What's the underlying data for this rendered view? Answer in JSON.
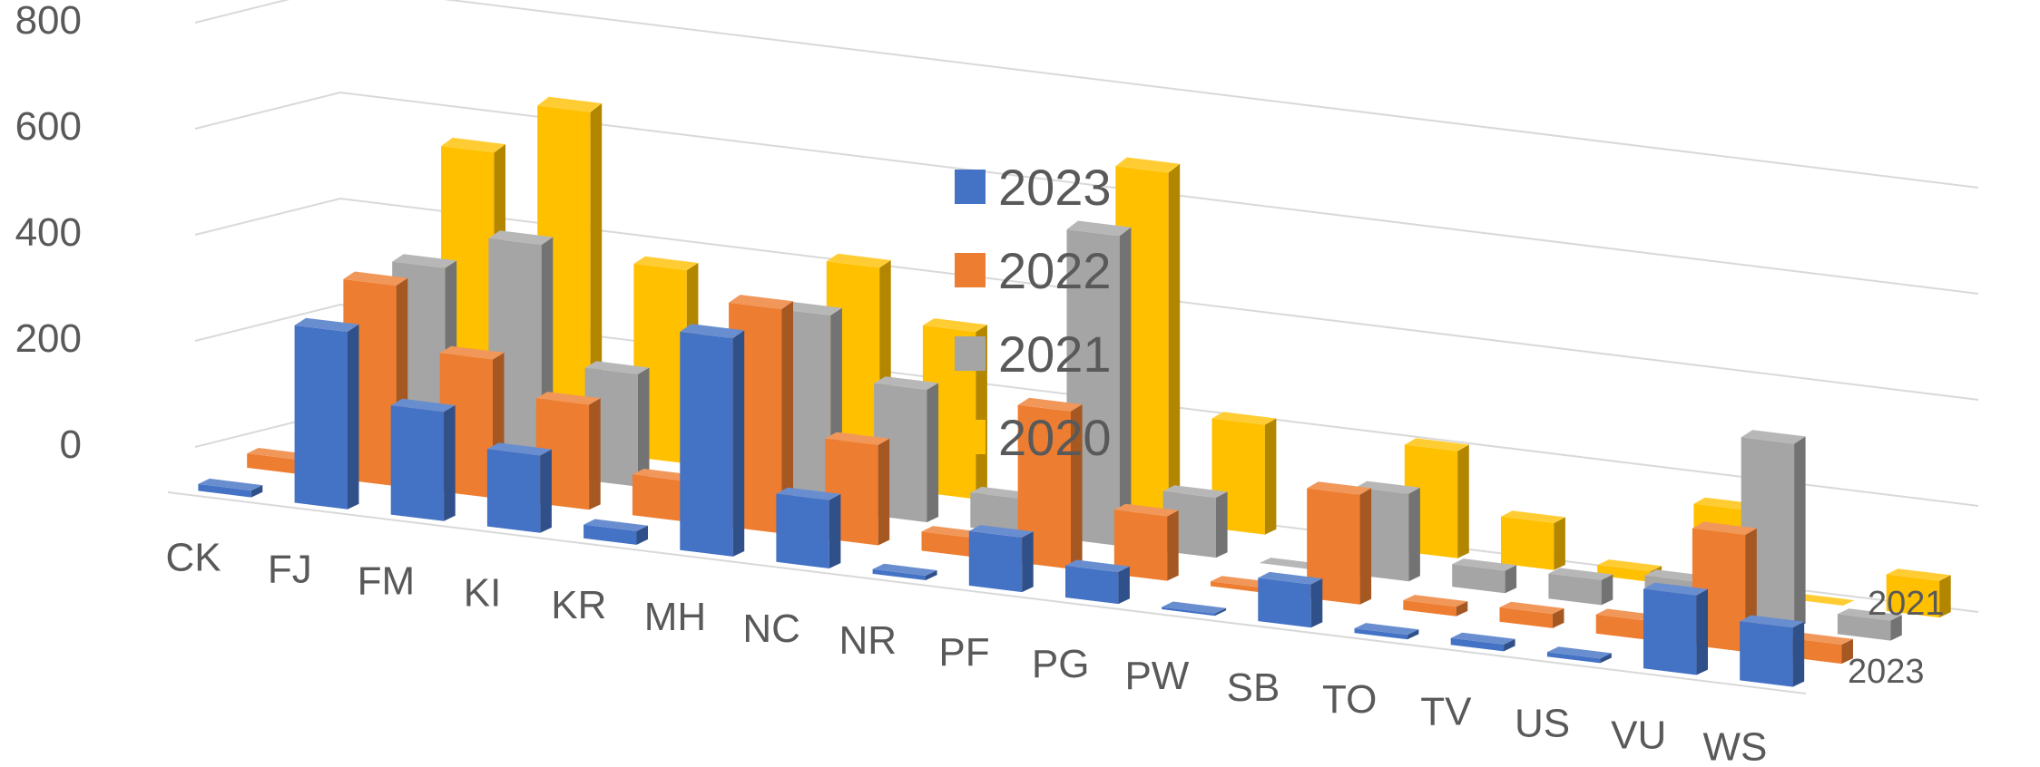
{
  "chart_data": {
    "type": "bar",
    "subtype": "3d-clustered-depth",
    "title": "",
    "xlabel": "",
    "ylabel": "",
    "ylim": [
      0,
      800
    ],
    "yticks": [
      "0",
      "200",
      "400",
      "600",
      "800"
    ],
    "grid": true,
    "legend_position": "right",
    "categories": [
      "CK",
      "FJ",
      "FM",
      "KI",
      "KR",
      "MH",
      "NC",
      "NR",
      "PF",
      "PG",
      "PW",
      "SB",
      "TO",
      "TV",
      "US",
      "VU",
      "WS"
    ],
    "series": [
      {
        "name": "2023",
        "color": "#4472C4",
        "values": [
          15,
          390,
          240,
          170,
          30,
          480,
          150,
          10,
          120,
          70,
          5,
          95,
          10,
          15,
          10,
          175,
          130
        ]
      },
      {
        "name": "2022",
        "color": "#ED7D31",
        "values": [
          30,
          420,
          290,
          220,
          85,
          470,
          210,
          40,
          330,
          135,
          10,
          230,
          20,
          30,
          40,
          245,
          40
        ]
      },
      {
        "name": "2021",
        "color": "#A5A5A5",
        "values": [
          60,
          390,
          460,
          225,
          0,
          390,
          265,
          70,
          620,
          120,
          0,
          175,
          45,
          50,
          70,
          370,
          40
        ]
      },
      {
        "name": "2020",
        "color": "#FFC000",
        "values": [
          60,
          550,
          650,
          370,
          0,
          420,
          320,
          130,
          670,
          210,
          15,
          205,
          90,
          20,
          160,
          0,
          70
        ]
      }
    ],
    "depth_axis_labels": [
      "2021",
      "2023"
    ]
  }
}
